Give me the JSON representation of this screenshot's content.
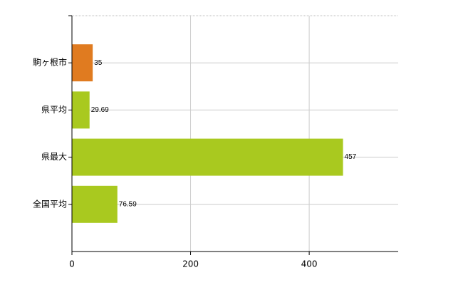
{
  "chart_data": {
    "type": "hbar",
    "categories": [
      "駒ヶ根市",
      "県平均",
      "県最大",
      "全国平均"
    ],
    "values": [
      35,
      29.69,
      457,
      76.59
    ],
    "colors": [
      "#e07b20",
      "#a9c91f",
      "#a9c91f",
      "#a9c91f"
    ],
    "xlim": [
      0,
      550
    ],
    "xticks": [
      0,
      200,
      400
    ],
    "grid": true
  }
}
